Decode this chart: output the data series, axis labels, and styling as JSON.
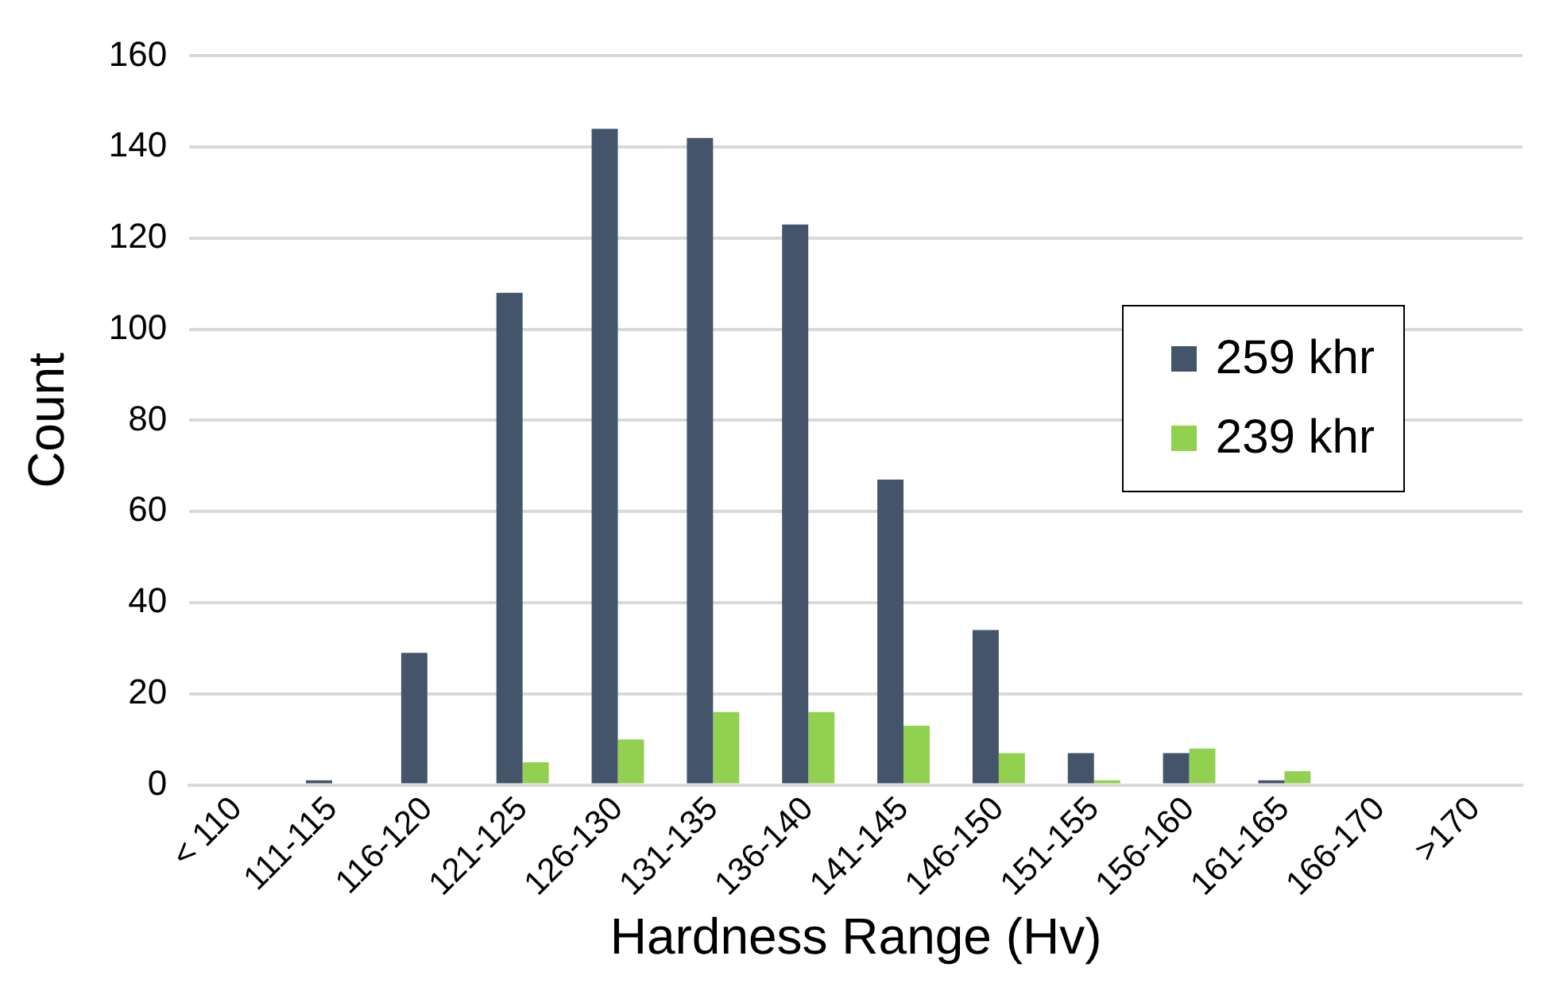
{
  "chart_data": {
    "type": "bar",
    "xlabel": "Hardness Range (Hv)",
    "ylabel": "Count",
    "categories": [
      "< 110",
      "111-115",
      "116-120",
      "121-125",
      "126-130",
      "131-135",
      "136-140",
      "141-145",
      "146-150",
      "151-155",
      "156-160",
      "161-165",
      "166-170",
      ">170"
    ],
    "series": [
      {
        "name": "259 khr",
        "color": "#44546a",
        "values": [
          0,
          1,
          29,
          108,
          144,
          142,
          123,
          67,
          34,
          7,
          7,
          1,
          0,
          0
        ]
      },
      {
        "name": "239 khr",
        "color": "#92d050",
        "values": [
          0,
          0,
          0,
          5,
          10,
          16,
          16,
          13,
          7,
          1,
          8,
          3,
          0,
          0
        ]
      }
    ],
    "ylim": [
      0,
      160
    ],
    "yticks": [
      0,
      20,
      40,
      60,
      80,
      100,
      120,
      140,
      160
    ],
    "grid": "y",
    "legend": "right"
  }
}
